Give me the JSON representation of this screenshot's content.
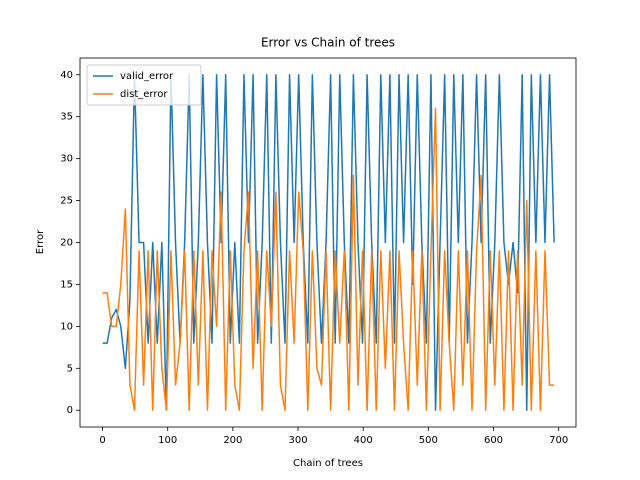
{
  "chart_data": {
    "type": "line",
    "title": "Error vs Chain of trees",
    "x_label": "Chain of trees",
    "y_label": "Error",
    "x": [
      0,
      7,
      14,
      21,
      28,
      35,
      42,
      49,
      56,
      63,
      70,
      77,
      84,
      91,
      98,
      105,
      112,
      119,
      126,
      133,
      140,
      147,
      154,
      161,
      168,
      175,
      182,
      189,
      196,
      203,
      210,
      217,
      224,
      231,
      238,
      245,
      252,
      259,
      266,
      273,
      280,
      287,
      294,
      301,
      308,
      315,
      322,
      329,
      336,
      343,
      350,
      357,
      364,
      371,
      378,
      385,
      392,
      399,
      406,
      413,
      420,
      427,
      434,
      441,
      448,
      455,
      462,
      469,
      476,
      483,
      490,
      497,
      504,
      511,
      518,
      525,
      532,
      539,
      546,
      553,
      560,
      567,
      574,
      581,
      588,
      595,
      602,
      609,
      616,
      623,
      630,
      637,
      644,
      651,
      658,
      665,
      672,
      679,
      686,
      693
    ],
    "series": [
      {
        "name": "valid_error",
        "color": "#1f77b4",
        "values": [
          8,
          8,
          11,
          12,
          10,
          5,
          13,
          40,
          20,
          20,
          8,
          20,
          8,
          20,
          0,
          40,
          20,
          8,
          20,
          40,
          8,
          20,
          40,
          20,
          8,
          40,
          20,
          40,
          8,
          20,
          8,
          40,
          20,
          40,
          8,
          20,
          40,
          8,
          40,
          20,
          8,
          40,
          20,
          40,
          20,
          8,
          40,
          20,
          8,
          20,
          40,
          8,
          40,
          20,
          8,
          40,
          20,
          8,
          40,
          20,
          8,
          40,
          20,
          40,
          8,
          40,
          20,
          40,
          15,
          40,
          20,
          8,
          40,
          0,
          20,
          40,
          8,
          40,
          20,
          40,
          8,
          20,
          40,
          20,
          40,
          8,
          20,
          40,
          20,
          15,
          20,
          14,
          40,
          0,
          40,
          20,
          40,
          20,
          40,
          20
        ]
      },
      {
        "name": "dist_error",
        "color": "#ff7f0e",
        "values": [
          14,
          14,
          10,
          10,
          15,
          24,
          3,
          0,
          19,
          3,
          19,
          0,
          19,
          5,
          0,
          19,
          3,
          8,
          19,
          0,
          19,
          3,
          19,
          0,
          19,
          10,
          26,
          0,
          19,
          3,
          0,
          19,
          26,
          5,
          19,
          0,
          19,
          10,
          26,
          3,
          0,
          19,
          8,
          26,
          19,
          0,
          19,
          5,
          3,
          19,
          0,
          19,
          8,
          19,
          0,
          28,
          3,
          19,
          0,
          19,
          0,
          19,
          5,
          19,
          0,
          19,
          8,
          0,
          19,
          3,
          19,
          0,
          19,
          36,
          0,
          19,
          8,
          0,
          19,
          3,
          19,
          0,
          19,
          28,
          0,
          19,
          3,
          19,
          0,
          19,
          0,
          19,
          3,
          25,
          0,
          19,
          0,
          19,
          3,
          3
        ]
      }
    ],
    "xlim": [
      -34.6,
      726.6
    ],
    "ylim": [
      -2,
      42
    ],
    "xticks": [
      0,
      100,
      200,
      300,
      400,
      500,
      600,
      700
    ],
    "yticks": [
      0,
      5,
      10,
      15,
      20,
      25,
      30,
      35,
      40
    ],
    "legend": "upper left"
  }
}
